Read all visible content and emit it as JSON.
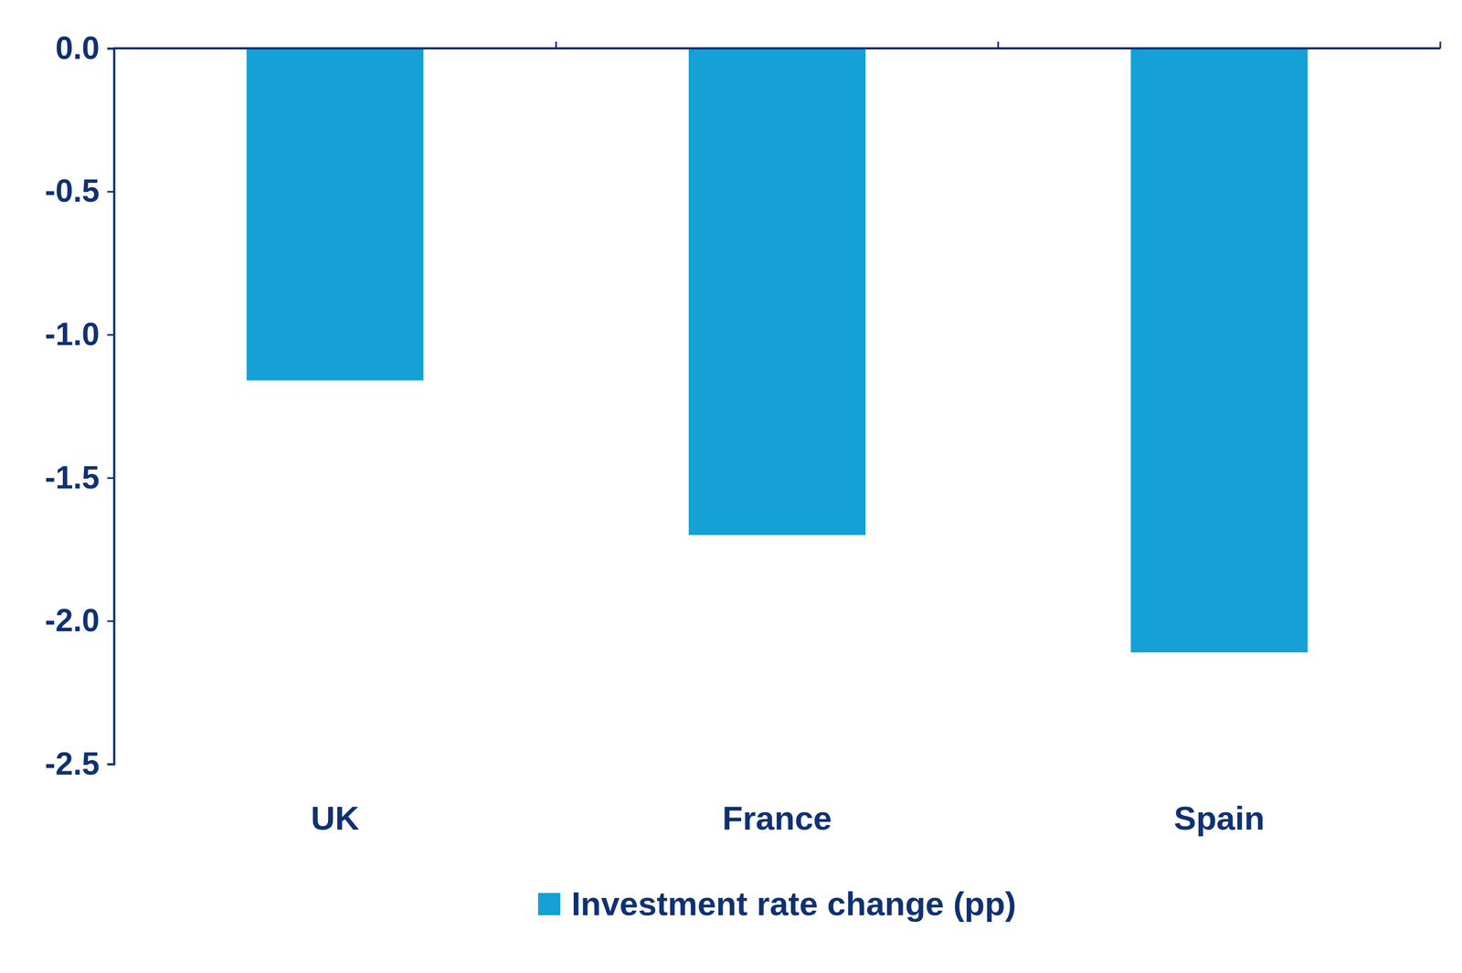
{
  "chart_data": {
    "type": "bar",
    "categories": [
      "UK",
      "France",
      "Spain"
    ],
    "series": [
      {
        "name": "Investment rate change (pp)",
        "color": "#15a0d6",
        "values": [
          -1.16,
          -1.7,
          -2.11
        ]
      }
    ],
    "ylim": [
      -2.5,
      0
    ],
    "yticks": [
      {
        "value": 0,
        "label": "0.0"
      },
      -0.5,
      {
        "value": -1,
        "label": "-1.0"
      },
      -1.5,
      {
        "value": -2,
        "label": "-2.0"
      },
      -2.5
    ],
    "legend": "bottom"
  }
}
